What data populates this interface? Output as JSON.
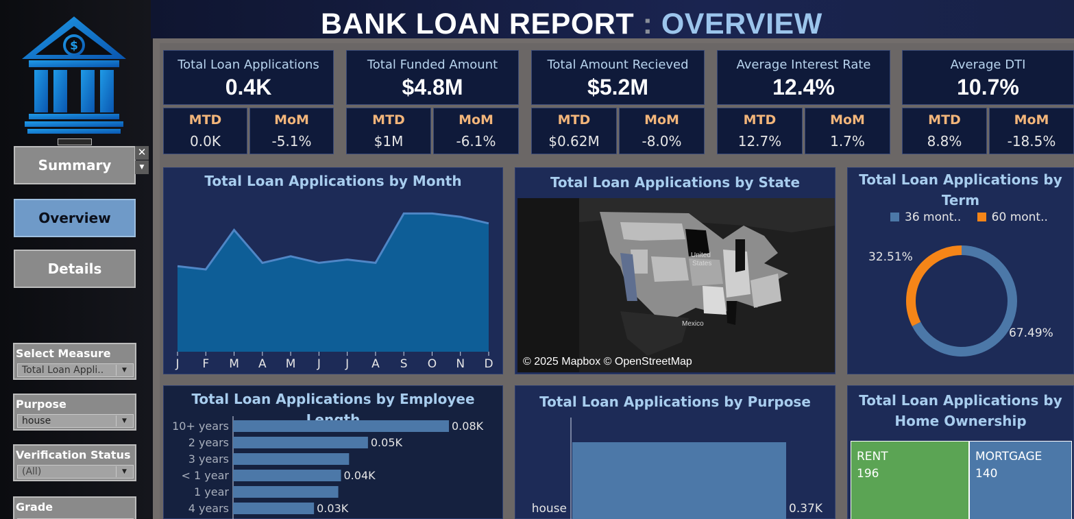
{
  "header": {
    "title_main": "BANK LOAN REPORT",
    "title_sep": ":",
    "title_sub": "OVERVIEW"
  },
  "sidebar": {
    "logo_icon": "bank-building-icon",
    "nav": {
      "summary": "Summary",
      "overview": "Overview",
      "details": "Details",
      "close_glyph": "✕",
      "dropdown_glyph": "▼"
    },
    "filters": {
      "measure": {
        "label": "Select Measure",
        "value": "Total Loan Appli..",
        "arrow": "▼"
      },
      "purpose": {
        "label": "Purpose",
        "value": "house",
        "arrow": "▼"
      },
      "verification": {
        "label": "Verification Status",
        "value": "(All)",
        "arrow": "▼"
      },
      "grade": {
        "label": "Grade",
        "value": "",
        "arrow": "▼"
      }
    }
  },
  "kpis": [
    {
      "label": "Total Loan Applications",
      "value": "0.4K",
      "mtd_label": "MTD",
      "mtd": "0.0K",
      "mom_label": "MoM",
      "mom": "-5.1%"
    },
    {
      "label": "Total Funded Amount",
      "value": "$4.8M",
      "mtd_label": "MTD",
      "mtd": "$1M",
      "mom_label": "MoM",
      "mom": "-6.1%"
    },
    {
      "label": "Total Amount Recieved",
      "value": "$5.2M",
      "mtd_label": "MTD",
      "mtd": "$0.62M",
      "mom_label": "MoM",
      "mom": "-8.0%"
    },
    {
      "label": "Average Interest Rate",
      "value": "12.4%",
      "mtd_label": "MTD",
      "mtd": "12.7%",
      "mom_label": "MoM",
      "mom": "1.7%"
    },
    {
      "label": "Average DTI",
      "value": "10.7%",
      "mtd_label": "MTD",
      "mtd": "8.8%",
      "mom_label": "MoM",
      "mom": "-18.5%"
    }
  ],
  "panels": {
    "month": {
      "title": "Total Loan Applications by Month"
    },
    "state": {
      "title": "Total Loan Applications by State",
      "credit": "© 2025 Mapbox © OpenStreetMap",
      "label_us": "United",
      "label_us2": "States",
      "label_mx": "Mexico"
    },
    "term": {
      "title": "Total Loan Applications by Term"
    },
    "emp": {
      "title": "Total Loan Applications by Employee Length"
    },
    "purpose": {
      "title": "Total Loan Applications by Purpose"
    },
    "home": {
      "title": "Total Loan Applications by Home Ownership"
    }
  },
  "colors": {
    "accent_blue": "#4c78a8",
    "accent_orange": "#f58518",
    "area_fill": "#0e5e97",
    "area_line": "#4f86c6",
    "rent_green": "#5ba454",
    "mtd_label": "#f2b57a",
    "title_blue": "#a8cdee"
  },
  "chart_data": [
    {
      "type": "area",
      "title": "Total Loan Applications by Month",
      "categories": [
        "J",
        "F",
        "M",
        "A",
        "M",
        "J",
        "J",
        "A",
        "S",
        "O",
        "N",
        "D"
      ],
      "values": [
        26,
        25,
        37,
        27,
        29,
        27,
        28,
        27,
        42,
        42,
        41,
        39
      ]
    },
    {
      "type": "pie",
      "title": "Total Loan Applications by Term",
      "categories": [
        "36 mont..",
        "60 mont.."
      ],
      "values": [
        67.49,
        32.51
      ],
      "labels": [
        "67.49%",
        "32.51%"
      ],
      "legend": "top"
    },
    {
      "type": "bar",
      "title": "Total Loan Applications by Employee Length",
      "categories": [
        "10+ years",
        "2 years",
        "3 years",
        "< 1 year",
        "1 year",
        "4 years"
      ],
      "values": [
        0.08,
        0.05,
        0.043,
        0.04,
        0.039,
        0.03
      ],
      "labels": [
        "0.08K",
        "0.05K",
        "",
        "0.04K",
        "",
        "0.03K"
      ]
    },
    {
      "type": "bar",
      "title": "Total Loan Applications by Purpose",
      "categories": [
        "house"
      ],
      "values": [
        0.37
      ],
      "labels": [
        "0.37K"
      ]
    },
    {
      "type": "heatmap",
      "title": "Total Loan Applications by Home Ownership",
      "categories": [
        "RENT",
        "MORTGAGE"
      ],
      "values": [
        196,
        140
      ]
    }
  ]
}
